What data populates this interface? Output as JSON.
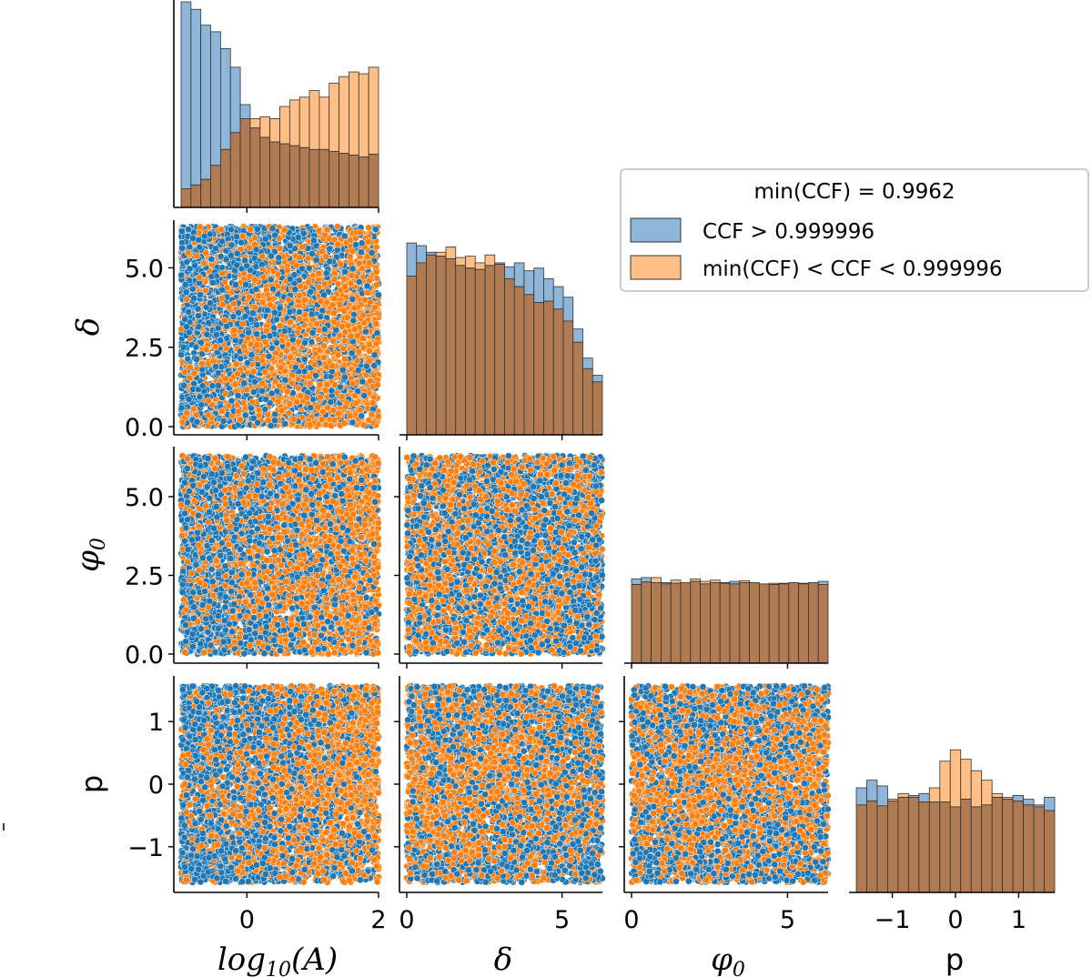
{
  "chart_data": {
    "type": "pairplot",
    "title": "",
    "legend": {
      "title": "min(CCF) = 0.9962",
      "placement": "right of top row",
      "entries": [
        {
          "label": "CCF > 0.999996",
          "color": "#1f77b4"
        },
        {
          "label": "min(CCF) < CCF < 0.999996",
          "color": "#ff7f0e"
        }
      ]
    },
    "colors": {
      "blue": "#1f77b4",
      "orange": "#ff7f0e",
      "overlap_fill": "#b07a52"
    },
    "variables": [
      {
        "key": "logA",
        "name": "log10(A)",
        "range": [
          -1,
          2
        ],
        "ticks": [
          0,
          2
        ],
        "tick_labels": [
          "0",
          "2"
        ]
      },
      {
        "key": "delta",
        "name": "δ",
        "range": [
          0,
          6.3
        ],
        "ticks": [
          0,
          5
        ],
        "tick_labels": [
          "0",
          "5"
        ],
        "y_ticks": [
          0,
          2.5,
          5
        ],
        "y_tick_labels": [
          "0.0",
          "2.5",
          "5.0"
        ]
      },
      {
        "key": "phi0",
        "name": "φ0",
        "range": [
          0,
          6.3
        ],
        "ticks": [
          0,
          5
        ],
        "tick_labels": [
          "0",
          "5"
        ],
        "y_ticks": [
          0,
          2.5,
          5
        ],
        "y_tick_labels": [
          "0.0",
          "2.5",
          "5.0"
        ]
      },
      {
        "key": "p",
        "name": "p",
        "range": [
          -1.57,
          1.57
        ],
        "ticks": [
          -1,
          0,
          1
        ],
        "tick_labels": [
          "−1",
          "0",
          "1"
        ],
        "y_ticks": [
          -1,
          0,
          1
        ],
        "y_tick_labels": [
          "−1",
          "0",
          "1"
        ]
      }
    ],
    "axis_labels": {
      "x": [
        "log",
        "10",
        "(A)",
        "δ",
        "φ",
        "0",
        "p"
      ],
      "y": [
        "δ",
        "φ",
        "0",
        "p"
      ]
    },
    "histograms": {
      "logA": {
        "bins": 20,
        "blue": [
          220,
          212,
          195,
          188,
          170,
          150,
          110,
          85,
          75,
          70,
          68,
          66,
          64,
          62,
          62,
          60,
          58,
          56,
          54,
          57
        ],
        "orange": [
          20,
          24,
          30,
          45,
          62,
          80,
          95,
          95,
          97,
          95,
          108,
          115,
          118,
          125,
          118,
          133,
          140,
          145,
          143,
          150
        ]
      },
      "delta": {
        "bins": 20,
        "blue": [
          145,
          143,
          138,
          135,
          133,
          128,
          126,
          125,
          128,
          130,
          127,
          130,
          124,
          126,
          118,
          112,
          104,
          80,
          58,
          45
        ],
        "orange": [
          120,
          130,
          136,
          138,
          142,
          134,
          135,
          130,
          136,
          129,
          118,
          112,
          106,
          100,
          101,
          95,
          86,
          70,
          50,
          40
        ]
      },
      "phi0": {
        "bins": 20,
        "blue": [
          134,
          136,
          128,
          128,
          127,
          128,
          130,
          126,
          128,
          127,
          130,
          128,
          128,
          126,
          125,
          127,
          128,
          126,
          128,
          130
        ],
        "orange": [
          125,
          129,
          136,
          126,
          132,
          128,
          134,
          130,
          132,
          128,
          126,
          131,
          128,
          126,
          127,
          126,
          128,
          127,
          128,
          125
        ]
      },
      "p": {
        "bins": 19,
        "blue": [
          110,
          118,
          112,
          96,
          100,
          102,
          104,
          95,
          95,
          90,
          98,
          90,
          92,
          100,
          98,
          102,
          98,
          92,
          100
        ],
        "orange": [
          92,
          96,
          91,
          98,
          104,
          100,
          95,
          110,
          138,
          150,
          140,
          128,
          118,
          104,
          100,
          96,
          92,
          90,
          86
        ]
      }
    },
    "scatter": {
      "points_per_class_per_panel": 2600,
      "description": "uniform random samples; blue denser at low log10(A) and high δ / |p|"
    }
  }
}
